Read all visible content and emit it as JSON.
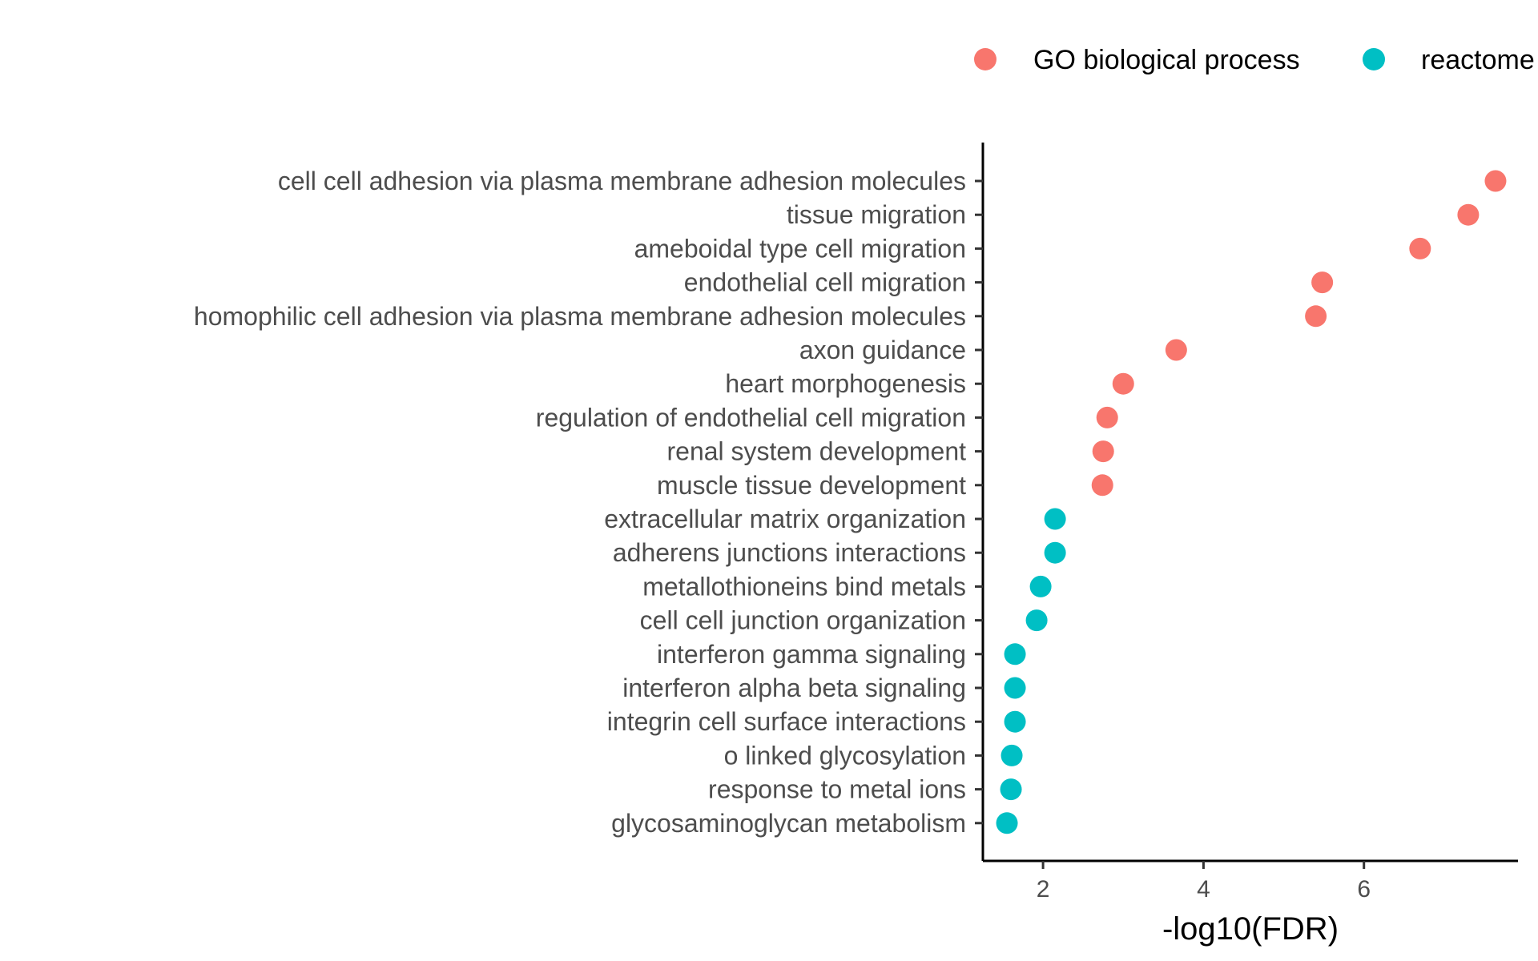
{
  "chart_data": {
    "type": "scatter",
    "title": "",
    "xlabel": "-log10(FDR)",
    "ylabel": "",
    "xlim": [
      1.25,
      7.92
    ],
    "xticks": [
      2,
      4,
      6
    ],
    "grid": false,
    "legend_position": "top",
    "legend": [
      {
        "name": "GO biological process",
        "color": "#F8766D"
      },
      {
        "name": "reactome",
        "color": "#00BFC4"
      }
    ],
    "categories": [
      "cell cell adhesion via plasma membrane adhesion molecules",
      "tissue migration",
      "ameboidal type cell migration",
      "endothelial cell migration",
      "homophilic cell adhesion via plasma membrane adhesion molecules",
      "axon guidance",
      "heart morphogenesis",
      "regulation of endothelial cell migration",
      "renal system development",
      "muscle tissue development",
      "extracellular matrix organization",
      "adherens junctions interactions",
      "metallothioneins bind metals",
      "cell cell junction organization",
      "interferon gamma signaling",
      "interferon alpha beta signaling",
      "integrin cell surface interactions",
      "o linked glycosylation",
      "response to metal ions",
      "glycosaminoglycan metabolism"
    ],
    "series": [
      {
        "name": "GO biological process",
        "color": "#F8766D",
        "points": [
          {
            "category": "cell cell adhesion via plasma membrane adhesion molecules",
            "x": 7.64
          },
          {
            "category": "tissue migration",
            "x": 7.3
          },
          {
            "category": "ameboidal type cell migration",
            "x": 6.7
          },
          {
            "category": "endothelial cell migration",
            "x": 5.48
          },
          {
            "category": "homophilic cell adhesion via plasma membrane adhesion molecules",
            "x": 5.4
          },
          {
            "category": "axon guidance",
            "x": 3.66
          },
          {
            "category": "heart morphogenesis",
            "x": 3.0
          },
          {
            "category": "regulation of endothelial cell migration",
            "x": 2.8
          },
          {
            "category": "renal system development",
            "x": 2.75
          },
          {
            "category": "muscle tissue development",
            "x": 2.74
          }
        ]
      },
      {
        "name": "reactome",
        "color": "#00BFC4",
        "points": [
          {
            "category": "extracellular matrix organization",
            "x": 2.15
          },
          {
            "category": "adherens junctions interactions",
            "x": 2.15
          },
          {
            "category": "metallothioneins bind metals",
            "x": 1.97
          },
          {
            "category": "cell cell junction organization",
            "x": 1.92
          },
          {
            "category": "interferon gamma signaling",
            "x": 1.65
          },
          {
            "category": "interferon alpha beta signaling",
            "x": 1.65
          },
          {
            "category": "integrin cell surface interactions",
            "x": 1.65
          },
          {
            "category": "o linked glycosylation",
            "x": 1.61
          },
          {
            "category": "response to metal ions",
            "x": 1.6
          },
          {
            "category": "glycosaminoglycan metabolism",
            "x": 1.55
          }
        ]
      }
    ]
  }
}
